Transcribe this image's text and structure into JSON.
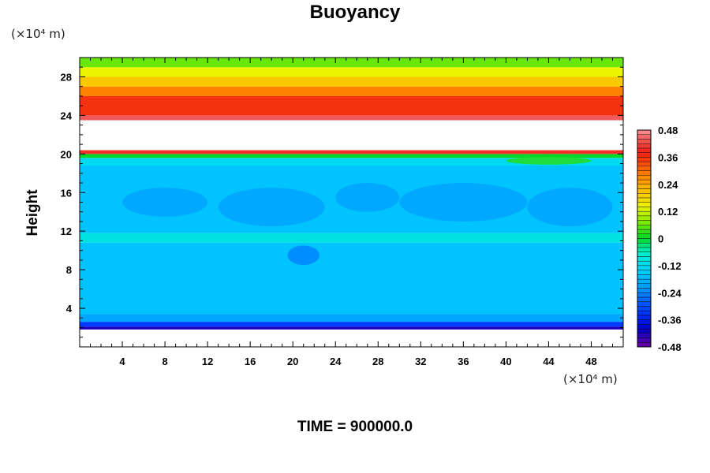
{
  "chart_data": {
    "type": "heatmap",
    "title": "Buoyancy",
    "ylabel": "Height",
    "x_unit": "(×10⁴ m)",
    "y_unit": "(×10⁴ m)",
    "footer": "TIME = 900000.0",
    "xlim": [
      0,
      51
    ],
    "ylim": [
      0,
      30
    ],
    "x_ticks": [
      "4",
      "8",
      "12",
      "16",
      "20",
      "24",
      "28",
      "32",
      "36",
      "40",
      "44",
      "48"
    ],
    "x_tick_values": [
      4,
      8,
      12,
      16,
      20,
      24,
      28,
      32,
      36,
      40,
      44,
      48
    ],
    "y_ticks": [
      "4",
      "8",
      "12",
      "16",
      "20",
      "24",
      "28"
    ],
    "y_tick_values": [
      4,
      8,
      12,
      16,
      20,
      24,
      28
    ],
    "colorbar": {
      "labels": [
        "0.48",
        "0.36",
        "0.24",
        "0.12",
        "0",
        "-0.12",
        "-0.24",
        "-0.36",
        "-0.48"
      ],
      "label_values": [
        0.48,
        0.36,
        0.24,
        0.12,
        0,
        -0.12,
        -0.24,
        -0.36,
        -0.48
      ],
      "range": [
        -0.48,
        0.48
      ]
    },
    "layers": [
      {
        "y0": 0,
        "y1": 1.8,
        "value": null
      },
      {
        "y0": 1.8,
        "y1": 2.1,
        "value": -0.42
      },
      {
        "y0": 2.1,
        "y1": 2.6,
        "value": -0.32
      },
      {
        "y0": 2.6,
        "y1": 3.4,
        "value": -0.2
      },
      {
        "y0": 3.4,
        "y1": 10.8,
        "value": -0.16
      },
      {
        "y0": 10.8,
        "y1": 11.8,
        "value": -0.1
      },
      {
        "y0": 11.8,
        "y1": 18.8,
        "value": -0.16
      },
      {
        "y0": 18.8,
        "y1": 19.6,
        "value": -0.12
      },
      {
        "y0": 19.6,
        "y1": 20.0,
        "value": 0.0
      },
      {
        "y0": 20.0,
        "y1": 20.4,
        "value": 0.4
      },
      {
        "y0": 20.4,
        "y1": 23.5,
        "value": null
      },
      {
        "y0": 23.5,
        "y1": 24.0,
        "value": 0.44
      },
      {
        "y0": 24.0,
        "y1": 26.0,
        "value": 0.36
      },
      {
        "y0": 26.0,
        "y1": 27.0,
        "value": 0.28
      },
      {
        "y0": 27.0,
        "y1": 28.0,
        "value": 0.2
      },
      {
        "y0": 28.0,
        "y1": 29.0,
        "value": 0.14
      },
      {
        "y0": 29.0,
        "y1": 30.0,
        "value": 0.06
      }
    ],
    "patches": [
      {
        "x": 8,
        "y": 15,
        "rx": 4,
        "ry": 1.5,
        "value": -0.2
      },
      {
        "x": 18,
        "y": 14.5,
        "rx": 5,
        "ry": 2,
        "value": -0.2
      },
      {
        "x": 27,
        "y": 15.5,
        "rx": 3,
        "ry": 1.5,
        "value": -0.2
      },
      {
        "x": 36,
        "y": 15,
        "rx": 6,
        "ry": 2,
        "value": -0.2
      },
      {
        "x": 46,
        "y": 14.5,
        "rx": 4,
        "ry": 2,
        "value": -0.2
      },
      {
        "x": 21,
        "y": 9.5,
        "rx": 1.5,
        "ry": 1,
        "value": -0.24
      },
      {
        "x": 44,
        "y": 19.3,
        "rx": 4,
        "ry": 0.4,
        "value": 0.02
      }
    ]
  }
}
